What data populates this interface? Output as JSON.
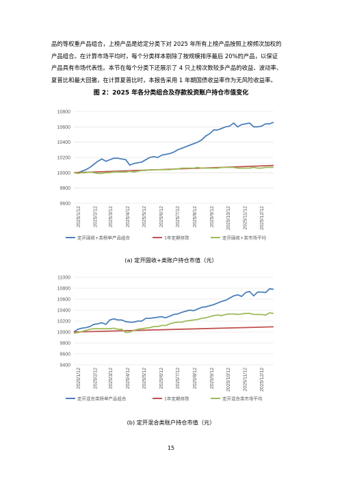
{
  "paragraph": {
    "lines": [
      "品的等权重产品组合，上榜产品是给定分类下对 2025 年所有上榜产品按照上榜频次加权的",
      "产品组合。在计算市场平均时，每个分类样本剔除了按规模排序最后 20%的产品，以保证",
      "产品具有市场代表性。本节在每个分类下还展示了 4 只上榜次数较多产品的收益、波动率、",
      "夏普比和最大回撤，在计算夏普比时，本报告采用 1 年期国债收益率作为无风险收益率。"
    ]
  },
  "figure_title": "图 2：2025 年各分类组合及存款投资账户持仓市值变化",
  "chart_data": [
    {
      "type": "line",
      "caption": "(a) 定开固收+类账户持仓市值（元）",
      "ylim": [
        9600,
        10800
      ],
      "yticks": [
        "9600",
        "9800",
        "10000",
        "10200",
        "10400",
        "10600",
        "10800"
      ],
      "xticks": [
        "2025/1/12",
        "2025/2/12",
        "2025/3/12",
        "2025/4/12",
        "2025/5/12",
        "2025/6/12",
        "2025/7/12",
        "2025/8/12",
        "2025/9/12",
        "2025/10/12",
        "2025/11/12",
        "2025/12/12"
      ],
      "x_start": "2025/1/1",
      "x_end": "2025/12/31",
      "grid": true,
      "legend_position": "bottom",
      "series": [
        {
          "name": "定开固收+类榜单产品组合",
          "color": "#4a7ebb",
          "values": [
            10000,
            10000,
            10020,
            10040,
            10070,
            10110,
            10150,
            10180,
            10150,
            10170,
            10190,
            10190,
            10180,
            10170,
            10100,
            10120,
            10130,
            10140,
            10170,
            10200,
            10210,
            10200,
            10230,
            10240,
            10250,
            10270,
            10300,
            10320,
            10340,
            10360,
            10380,
            10400,
            10430,
            10480,
            10510,
            10560,
            10560,
            10580,
            10600,
            10610,
            10650,
            10600,
            10630,
            10640,
            10650,
            10600,
            10600,
            10610,
            10640,
            10640,
            10660
          ]
        },
        {
          "name": "1年定期存款",
          "color": "#c0504d",
          "values": [
            10000,
            10095
          ]
        },
        {
          "name": "定开固收+类市场平均",
          "color": "#9bbb59",
          "values": [
            10000,
            9990,
            10000,
            10000,
            10010,
            10000,
            9990,
            9990,
            10000,
            10000,
            10010,
            10010,
            10010,
            10010,
            10020,
            10010,
            10020,
            10030,
            10030,
            10040,
            10040,
            10040,
            10040,
            10040,
            10040,
            10050,
            10050,
            10060,
            10060,
            10060,
            10060,
            10070,
            10060,
            10060,
            10060,
            10060,
            10060,
            10070,
            10070,
            10070,
            10070,
            10060,
            10060,
            10060,
            10060,
            10070,
            10060,
            10060,
            10070,
            10070,
            10070
          ]
        }
      ]
    },
    {
      "type": "line",
      "caption": "(b) 定开混合类账户持仓市值（元）",
      "ylim": [
        9400,
        11000
      ],
      "yticks": [
        "9400",
        "9600",
        "9800",
        "10000",
        "10200",
        "10400",
        "10600",
        "10800",
        "11000"
      ],
      "xticks": [
        "2025/1/12",
        "2025/2/12",
        "2025/3/12",
        "2025/4/12",
        "2025/5/12",
        "2025/6/12",
        "2025/7/12",
        "2025/8/12",
        "2025/9/12",
        "2025/10/12",
        "2025/11/12",
        "2025/12/12"
      ],
      "x_start": "2025/1/1",
      "x_end": "2025/12/31",
      "grid": true,
      "legend_position": "bottom",
      "series": [
        {
          "name": "定开混合类榜单产品组合",
          "color": "#4a7ebb",
          "values": [
            10000,
            10050,
            10070,
            10080,
            10100,
            10140,
            10150,
            10170,
            10140,
            10220,
            10240,
            10220,
            10220,
            10190,
            10180,
            10180,
            10200,
            10200,
            10250,
            10250,
            10260,
            10270,
            10280,
            10260,
            10290,
            10320,
            10330,
            10360,
            10380,
            10400,
            10390,
            10420,
            10450,
            10460,
            10480,
            10500,
            10530,
            10560,
            10580,
            10620,
            10660,
            10680,
            10650,
            10720,
            10740,
            10660,
            10730,
            10730,
            10720,
            10790,
            10780
          ]
        },
        {
          "name": "1年定期存款",
          "color": "#c0504d",
          "values": [
            10000,
            10095
          ]
        },
        {
          "name": "定开混合类市场平均",
          "color": "#9bbb59",
          "values": [
            9980,
            9990,
            10010,
            10030,
            10050,
            10060,
            10060,
            10060,
            10060,
            10060,
            10070,
            10050,
            10050,
            9990,
            10000,
            10030,
            10050,
            10060,
            10070,
            10080,
            10100,
            10100,
            10120,
            10120,
            10150,
            10170,
            10180,
            10180,
            10200,
            10210,
            10220,
            10230,
            10250,
            10260,
            10280,
            10300,
            10310,
            10300,
            10320,
            10330,
            10330,
            10320,
            10330,
            10340,
            10340,
            10320,
            10320,
            10320,
            10310,
            10350,
            10340
          ]
        }
      ]
    }
  ],
  "page_number": "15"
}
